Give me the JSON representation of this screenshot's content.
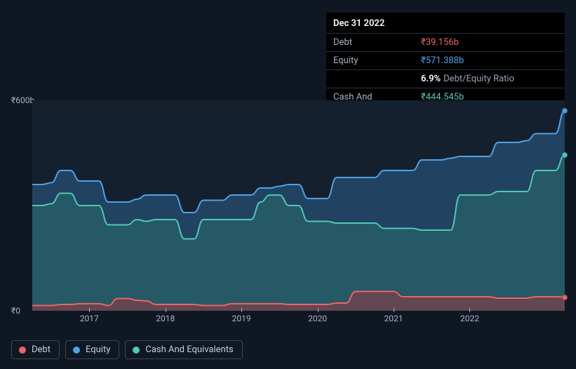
{
  "background_color": "#0f1722",
  "plot_background": "#15202e",
  "tooltip": {
    "date": "Dec 31 2022",
    "rows": [
      {
        "label": "Debt",
        "value": "₹39.156b",
        "class": "val-debt"
      },
      {
        "label": "Equity",
        "value": "₹571.388b",
        "class": "val-equity"
      },
      {
        "label": "",
        "ratio": "6.9%",
        "ratio_label": "Debt/Equity Ratio"
      },
      {
        "label": "Cash And Equivalents",
        "value": "₹444.545b",
        "class": "val-cash"
      }
    ]
  },
  "chart": {
    "type": "area",
    "y_axis": {
      "max": 600,
      "ticks": [
        {
          "v": 600,
          "label": "₹600b"
        },
        {
          "v": 0,
          "label": "₹0"
        }
      ]
    },
    "x_axis": {
      "ticks": [
        "2017",
        "2018",
        "2019",
        "2020",
        "2021",
        "2022"
      ]
    },
    "x_range_years": 7.0,
    "series": {
      "equity": {
        "color": "#4da3e8",
        "fill": "rgba(45,95,140,0.55)",
        "data": [
          360,
          360,
          365,
          400,
          400,
          370,
          370,
          370,
          310,
          310,
          310,
          318,
          330,
          330,
          330,
          330,
          280,
          280,
          315,
          315,
          315,
          330,
          330,
          330,
          350,
          350,
          355,
          360,
          360,
          320,
          320,
          320,
          380,
          380,
          380,
          380,
          380,
          400,
          400,
          400,
          400,
          430,
          430,
          430,
          435,
          440,
          440,
          440,
          440,
          480,
          480,
          480,
          485,
          505,
          505,
          505,
          571
        ]
      },
      "cash": {
        "color": "#4dc9b5",
        "fill": "rgba(40,110,105,0.55)",
        "data": [
          300,
          300,
          305,
          335,
          335,
          300,
          300,
          300,
          245,
          245,
          245,
          260,
          255,
          260,
          260,
          260,
          205,
          205,
          260,
          260,
          260,
          260,
          260,
          260,
          310,
          330,
          330,
          300,
          300,
          255,
          255,
          255,
          250,
          250,
          250,
          250,
          250,
          235,
          235,
          235,
          235,
          230,
          230,
          230,
          230,
          330,
          330,
          330,
          330,
          340,
          340,
          340,
          340,
          400,
          400,
          400,
          444
        ]
      },
      "debt": {
        "color": "#ec6565",
        "fill": "rgba(150,55,65,0.55)",
        "data": [
          15,
          15,
          15,
          18,
          18,
          20,
          20,
          20,
          15,
          35,
          35,
          30,
          28,
          18,
          18,
          18,
          18,
          18,
          15,
          15,
          15,
          20,
          20,
          20,
          20,
          20,
          20,
          18,
          18,
          18,
          18,
          18,
          22,
          22,
          55,
          55,
          55,
          55,
          55,
          40,
          40,
          40,
          40,
          40,
          40,
          40,
          40,
          40,
          40,
          36,
          36,
          36,
          36,
          40,
          40,
          40,
          39
        ]
      }
    }
  },
  "legend": [
    {
      "label": "Debt",
      "dot": "dot-debt"
    },
    {
      "label": "Equity",
      "dot": "dot-equity"
    },
    {
      "label": "Cash And Equivalents",
      "dot": "dot-cash"
    }
  ]
}
